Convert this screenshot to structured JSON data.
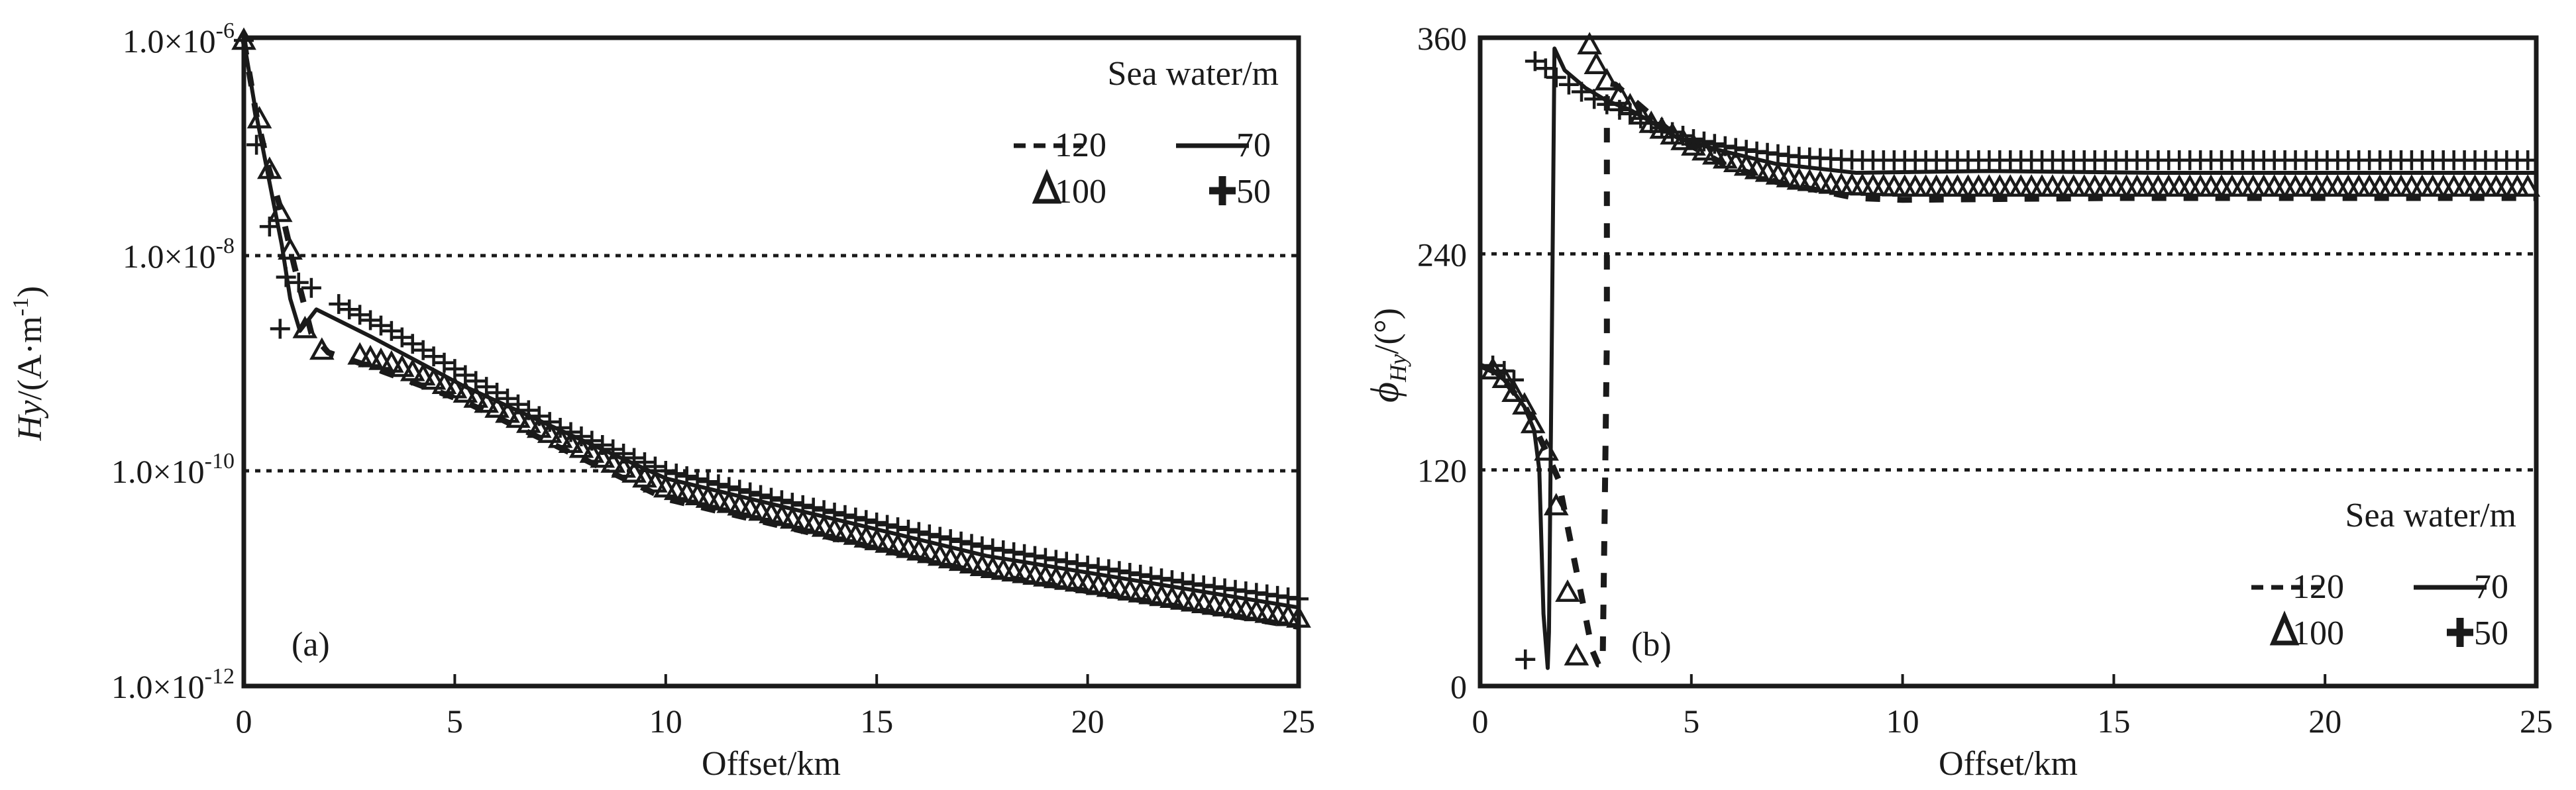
{
  "chart_data": [
    {
      "type": "line",
      "panel": "(a)",
      "title": "",
      "xlabel": "Offset/km",
      "ylabel": {
        "main": "Hy",
        "unit_prefix": "/(A·m",
        "unit_sup": "-1",
        "unit_suffix": ")"
      },
      "xlim": [
        0,
        25
      ],
      "ylim_log10": [
        -12,
        -6
      ],
      "yscale": "log",
      "xticks": [
        "0",
        "5",
        "10",
        "15",
        "20",
        "25"
      ],
      "xtick_values": [
        0,
        5,
        10,
        15,
        20,
        25
      ],
      "yticks": [
        {
          "base": "1.0×10",
          "exp": "-6",
          "log10": -6
        },
        {
          "base": "1.0×10",
          "exp": "-8",
          "log10": -8
        },
        {
          "base": "1.0×10",
          "exp": "-10",
          "log10": -10
        },
        {
          "base": "1.0×10",
          "exp": "-12",
          "log10": -12
        }
      ],
      "grid": "dotted horizontal at 1.0×10^-8 and 1.0×10^-10",
      "legend": {
        "title": "Sea water/m",
        "placement": "top-right",
        "entries": [
          {
            "label": "120",
            "style": "dashed"
          },
          {
            "label": "70",
            "style": "solid"
          },
          {
            "label": "100",
            "style": "triangle"
          },
          {
            "label": "50",
            "style": "plus"
          }
        ]
      },
      "series": [
        {
          "name": "120",
          "style": "dashed",
          "x": [
            0,
            0.3,
            0.6,
            0.9,
            1.2,
            1.6,
            2.0,
            2.76,
            5.2,
            10,
            17.6,
            25
          ],
          "log10_y": [
            -6.0,
            -6.7,
            -7.2,
            -7.6,
            -8.1,
            -8.72,
            -8.9,
            -9.0,
            -9.35,
            -10.26,
            -10.96,
            -11.45
          ]
        },
        {
          "name": "70",
          "style": "solid",
          "x": [
            0,
            0.3,
            0.6,
            0.9,
            1.1,
            1.33,
            1.72,
            3.0,
            5.2,
            10,
            17.6,
            25
          ],
          "log10_y": [
            -6.0,
            -6.7,
            -7.3,
            -7.9,
            -8.4,
            -8.7,
            -8.5,
            -8.75,
            -9.21,
            -10.07,
            -10.79,
            -11.27
          ]
        },
        {
          "name": "100",
          "style": "triangle",
          "x": [
            0,
            0.37,
            0.61,
            0.86,
            1.1,
            1.45,
            1.85,
            2.5,
            3.5,
            5.2,
            7.5,
            10,
            12.5,
            15,
            17.6,
            20,
            22.5,
            25
          ],
          "log10_y": [
            -6.0,
            -6.73,
            -7.2,
            -7.6,
            -7.95,
            -8.68,
            -8.88,
            -8.9,
            -9.0,
            -9.27,
            -9.7,
            -10.16,
            -10.4,
            -10.65,
            -10.9,
            -11.05,
            -11.22,
            -11.37
          ]
        },
        {
          "name": "50",
          "style": "plus",
          "x": [
            0,
            0.3,
            0.61,
            0.86,
            1.0,
            1.3,
            1.6,
            2.0,
            2.5,
            3.0,
            3.5,
            4.0,
            5.2,
            7.5,
            10,
            12.5,
            15,
            17.6,
            20,
            22.5,
            25
          ],
          "log10_y": [
            -6.0,
            -6.97,
            -7.73,
            -8.68,
            -8.2,
            -8.25,
            -8.3,
            -8.4,
            -8.5,
            -8.6,
            -8.7,
            -8.82,
            -9.1,
            -9.6,
            -10.0,
            -10.25,
            -10.48,
            -10.71,
            -10.88,
            -11.05,
            -11.19
          ]
        }
      ]
    },
    {
      "type": "line",
      "panel": "(b)",
      "title": "",
      "xlabel": "Offset/km",
      "ylabel": {
        "symbol": "ϕ",
        "sub": "Hy",
        "unit": "/(°)"
      },
      "xlim": [
        0,
        25
      ],
      "ylim": [
        0,
        360
      ],
      "xticks": [
        "0",
        "5",
        "10",
        "15",
        "20",
        "25"
      ],
      "xtick_values": [
        0,
        5,
        10,
        15,
        20,
        25
      ],
      "yticks": [
        "0",
        "120",
        "240",
        "360"
      ],
      "ytick_values": [
        0,
        120,
        240,
        360
      ],
      "grid": "dotted horizontal at 120 and 240",
      "legend": {
        "title": "Sea water/m",
        "placement": "bottom-right",
        "entries": [
          {
            "label": "120",
            "style": "dashed"
          },
          {
            "label": "70",
            "style": "solid"
          },
          {
            "label": "100",
            "style": "triangle"
          },
          {
            "label": "50",
            "style": "plus"
          }
        ]
      },
      "series": [
        {
          "name": "120",
          "style": "dashed",
          "x": [
            0,
            0.3,
            0.57,
            0.8,
            1.05,
            1.25,
            1.57,
            1.85,
            2.1,
            2.4,
            2.65,
            2.8,
            2.9,
            2.95,
            3.0,
            3.0,
            3.2,
            3.55,
            4.0,
            4.7,
            5.75,
            7.0,
            8.9,
            10,
            15,
            20,
            25
          ],
          "y": [
            178,
            175,
            170,
            163,
            156,
            146,
            130,
            115,
            85,
            50,
            20,
            12,
            12,
            100,
            194,
            335,
            334,
            327,
            318,
            304,
            290,
            280,
            271,
            270,
            271,
            271,
            271
          ]
        },
        {
          "name": "70",
          "style": "solid",
          "x": [
            0,
            0.3,
            0.57,
            0.8,
            1.05,
            1.28,
            1.4,
            1.5,
            1.6,
            1.63,
            1.7,
            1.76,
            2.0,
            2.5,
            3.0,
            3.55,
            4.0,
            4.7,
            5.75,
            7.0,
            8.9,
            12,
            16,
            20,
            25
          ],
          "y": [
            178,
            175,
            170,
            163,
            155,
            142,
            120,
            40,
            10,
            30,
            200,
            354,
            342,
            332,
            325,
            320,
            314,
            304,
            297,
            290,
            285,
            286,
            285,
            285,
            285
          ]
        },
        {
          "name": "100",
          "style": "triangle",
          "x": [
            0.3,
            0.57,
            0.8,
            1.05,
            1.25,
            1.57,
            1.8,
            2.07,
            2.28,
            2.59,
            2.75,
            3.0,
            3.3,
            3.6,
            4.0,
            4.7,
            5.2,
            5.75,
            6.5,
            7.5,
            8.5,
            10,
            12,
            14,
            16,
            18,
            20,
            22,
            24,
            25
          ],
          "y": [
            175.5,
            170.7,
            163,
            156,
            145.6,
            130.4,
            100,
            52,
            16.7,
            356,
            345,
            336,
            328,
            321,
            313,
            304,
            298,
            293,
            287,
            281,
            278,
            277,
            277,
            277,
            277,
            277,
            277,
            277,
            277,
            277
          ]
        },
        {
          "name": "50",
          "style": "plus",
          "x": [
            0.3,
            0.57,
            0.8,
            1.07,
            1.3,
            1.55,
            1.8,
            2.1,
            2.4,
            2.7,
            3.0,
            3.3,
            3.55,
            4.0,
            4.5,
            5.0,
            5.75,
            6.5,
            7.5,
            8.9,
            10,
            12,
            14,
            16,
            18,
            20,
            22,
            24,
            25
          ],
          "y": [
            178,
            175,
            170,
            14.8,
            347,
            343,
            338,
            334,
            330,
            326,
            323,
            320,
            318,
            313,
            308,
            304,
            300,
            297,
            294,
            292,
            292,
            292,
            292,
            292,
            292,
            292,
            292,
            292,
            292
          ]
        }
      ]
    }
  ],
  "colors": {
    "ink": "#1a1a1a",
    "background": "#ffffff"
  }
}
